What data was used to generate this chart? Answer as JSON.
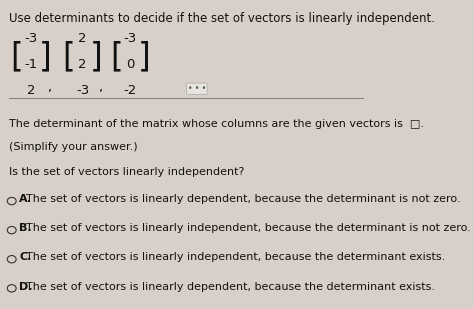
{
  "title": "Use determinants to decide if the set of vectors is linearly independent.",
  "title_underline": "linearly",
  "vectors": [
    [
      "-3",
      "-1",
      "2"
    ],
    [
      "2",
      "2",
      "-3"
    ],
    [
      "-3",
      "0",
      "-2"
    ]
  ],
  "det_text": "The determinant of the matrix whose columns are the given vectors is",
  "simplify_text": "(Simplify your answer.)",
  "question_text": "Is the set of vectors linearly independent?",
  "options": [
    {
      "label": "A.",
      "text": "The set of vectors is linearly dependent, because the determinant is not zero."
    },
    {
      "label": "B.",
      "text": "The set of vectors is linearly independent, because the determinant is not zero."
    },
    {
      "label": "C.",
      "text": "The set of vectors is linearly independent, because the determinant exists."
    },
    {
      "label": "D.",
      "text": "The set of vectors is linearly dependent, because the determinant exists."
    }
  ],
  "bg_color": "#d8d0c8",
  "text_color": "#111111",
  "font_size_title": 8.5,
  "font_size_body": 8.0,
  "font_size_matrix": 9.5
}
